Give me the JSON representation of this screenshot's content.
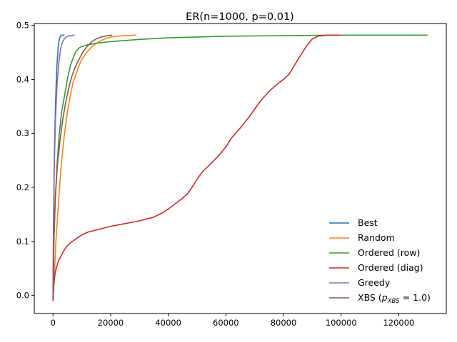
{
  "chart_data": {
    "type": "line",
    "title": "ER(n=1000, p=0.01)",
    "xlabel": "",
    "ylabel": "",
    "xlim": [
      -6500,
      136500
    ],
    "ylim": [
      -0.0335,
      0.5035
    ],
    "x_ticks": [
      0,
      20000,
      40000,
      60000,
      80000,
      100000,
      120000
    ],
    "y_ticks": [
      0.0,
      0.1,
      0.2,
      0.3,
      0.4,
      0.5
    ],
    "x_tick_labels": [
      "0",
      "20000",
      "40000",
      "60000",
      "80000",
      "100000",
      "120000"
    ],
    "y_tick_labels": [
      "0.0",
      "0.1",
      "0.2",
      "0.3",
      "0.4",
      "0.5"
    ],
    "grid": false,
    "legend_position": "lower-right",
    "series": [
      {
        "name": "Best",
        "color": "#1f77b4",
        "x": [
          0,
          200,
          500,
          900,
          1300,
          1800,
          2200,
          2600,
          3000,
          4000
        ],
        "y": [
          -0.01,
          0.15,
          0.27,
          0.36,
          0.42,
          0.46,
          0.475,
          0.48,
          0.482,
          0.482
        ]
      },
      {
        "name": "Random",
        "color": "#ff7f0e",
        "x": [
          0,
          500,
          1000,
          2000,
          3000,
          4000,
          5000,
          6000,
          7000,
          8000,
          9000,
          10000,
          12000,
          14000,
          16000,
          18000,
          20000,
          22000,
          25000,
          29000
        ],
        "y": [
          -0.01,
          0.04,
          0.1,
          0.18,
          0.25,
          0.3,
          0.34,
          0.37,
          0.395,
          0.41,
          0.425,
          0.437,
          0.452,
          0.463,
          0.47,
          0.475,
          0.478,
          0.48,
          0.481,
          0.482
        ]
      },
      {
        "name": "Ordered (row)",
        "color": "#2ca02c",
        "x": [
          0,
          300,
          800,
          1500,
          2200,
          3000,
          4000,
          5000,
          6000,
          7000,
          8000,
          9000,
          10000,
          12000,
          15000,
          20000,
          30000,
          40000,
          60000,
          80000,
          100000,
          130000
        ],
        "y": [
          -0.01,
          0.1,
          0.18,
          0.25,
          0.3,
          0.34,
          0.37,
          0.4,
          0.425,
          0.44,
          0.452,
          0.458,
          0.461,
          0.464,
          0.467,
          0.47,
          0.474,
          0.477,
          0.48,
          0.481,
          0.482,
          0.482
        ]
      },
      {
        "name": "Ordered (diag)",
        "color": "#d62728",
        "x": [
          0,
          300,
          600,
          1000,
          1500,
          2000,
          3000,
          4000,
          5000,
          6000,
          8000,
          10000,
          12000,
          15000,
          20000,
          25000,
          30000,
          35000,
          38000,
          40000,
          42000,
          45000,
          47000,
          50000,
          52000,
          55000,
          58000,
          60000,
          62000,
          65000,
          68000,
          70000,
          72000,
          75000,
          78000,
          80000,
          82000,
          84000,
          86000,
          88000,
          90000,
          92000,
          95000,
          100000
        ],
        "y": [
          -0.01,
          0.02,
          0.035,
          0.048,
          0.057,
          0.065,
          0.075,
          0.085,
          0.092,
          0.097,
          0.105,
          0.112,
          0.117,
          0.121,
          0.128,
          0.133,
          0.138,
          0.145,
          0.153,
          0.16,
          0.168,
          0.18,
          0.19,
          0.215,
          0.23,
          0.245,
          0.262,
          0.275,
          0.292,
          0.31,
          0.33,
          0.345,
          0.36,
          0.378,
          0.392,
          0.4,
          0.41,
          0.428,
          0.445,
          0.462,
          0.475,
          0.48,
          0.482,
          0.482
        ]
      },
      {
        "name": "Greedy",
        "color": "#9467bd",
        "x": [
          0,
          200,
          500,
          900,
          1400,
          2000,
          2600,
          3200,
          4000,
          5000,
          6000,
          7500
        ],
        "y": [
          -0.01,
          0.14,
          0.25,
          0.33,
          0.39,
          0.43,
          0.455,
          0.468,
          0.476,
          0.48,
          0.481,
          0.482
        ]
      },
      {
        "name": "XBS ($p_{XBS}=1.0$)",
        "name_main": "XBS (",
        "name_sub": "XBS",
        "name_end": " = 1.0)",
        "color": "#8c564b",
        "x": [
          0,
          300,
          800,
          1500,
          2500,
          3500,
          4500,
          5500,
          6500,
          7500,
          8500,
          9500,
          10500,
          12000,
          13500,
          15000,
          17000,
          19000,
          20500
        ],
        "y": [
          -0.01,
          0.1,
          0.18,
          0.24,
          0.29,
          0.33,
          0.36,
          0.385,
          0.405,
          0.42,
          0.432,
          0.442,
          0.452,
          0.462,
          0.47,
          0.475,
          0.479,
          0.481,
          0.482
        ]
      }
    ]
  }
}
